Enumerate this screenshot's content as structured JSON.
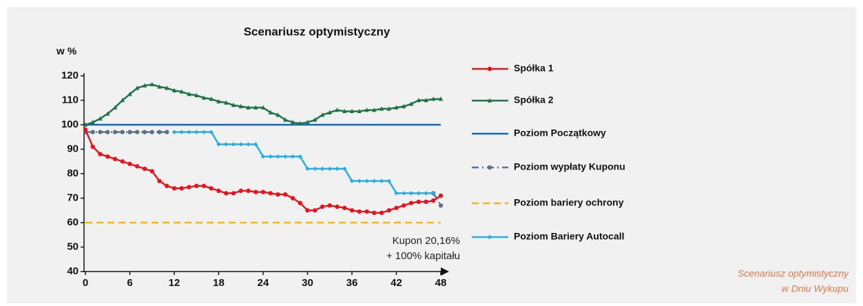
{
  "chart_data": {
    "type": "line",
    "title": "Scenariusz optymistyczny",
    "y_label": "w %",
    "annotation": [
      "Kupon 20,16%",
      "+ 100% kapitału"
    ],
    "caption": [
      "Scenariusz optymistyczny",
      "w Dniu Wykupu"
    ],
    "xlim": [
      0,
      48
    ],
    "xticks": [
      0,
      6,
      12,
      18,
      24,
      30,
      36,
      42,
      48
    ],
    "ylim": [
      40,
      120
    ],
    "yticks": [
      40,
      50,
      60,
      70,
      80,
      90,
      100,
      110,
      120
    ],
    "series": [
      {
        "name": "Spółka 1",
        "color": "#e3161e",
        "marker": "circle",
        "dash": "solid",
        "x": [
          0,
          1,
          2,
          3,
          4,
          5,
          6,
          7,
          8,
          9,
          10,
          11,
          12,
          13,
          14,
          15,
          16,
          17,
          18,
          19,
          20,
          21,
          22,
          23,
          24,
          25,
          26,
          27,
          28,
          29,
          30,
          31,
          32,
          33,
          34,
          35,
          36,
          37,
          38,
          39,
          40,
          41,
          42,
          43,
          44,
          45,
          46,
          47,
          48
        ],
        "values": [
          98,
          91,
          88,
          87,
          86,
          85,
          84,
          83,
          82,
          81,
          77,
          75,
          74,
          74,
          74.5,
          75,
          75,
          74,
          73,
          72,
          72,
          73,
          73,
          72.5,
          72.5,
          72,
          71.5,
          71.5,
          70,
          68,
          65,
          65,
          66.5,
          67,
          66.5,
          66,
          65,
          64.5,
          64.5,
          64,
          64,
          65,
          66,
          67,
          68,
          68.5,
          68.5,
          69,
          71
        ]
      },
      {
        "name": "Spółka 2",
        "color": "#1e7349",
        "marker": "triangle",
        "dash": "solid",
        "x": [
          0,
          1,
          2,
          3,
          4,
          5,
          6,
          7,
          8,
          9,
          10,
          11,
          12,
          13,
          14,
          15,
          16,
          17,
          18,
          19,
          20,
          21,
          22,
          23,
          24,
          25,
          26,
          27,
          28,
          29,
          30,
          31,
          32,
          33,
          34,
          35,
          36,
          37,
          38,
          39,
          40,
          41,
          42,
          43,
          44,
          45,
          46,
          47,
          48
        ],
        "values": [
          100,
          101,
          102.5,
          104.5,
          107,
          110,
          112.5,
          115,
          116,
          116.5,
          115.5,
          115,
          114,
          113.5,
          112.5,
          112,
          111,
          110.5,
          109.5,
          109,
          108,
          107.5,
          107,
          107,
          107,
          105,
          104,
          102,
          101,
          100.5,
          101,
          102,
          104,
          105,
          106,
          105.5,
          105.5,
          105.5,
          106,
          106,
          106.5,
          106.5,
          107,
          107.5,
          108.5,
          110,
          110,
          110.5,
          110.5
        ]
      },
      {
        "name": "Poziom Początkowy",
        "color": "#1565b8",
        "marker": "none",
        "dash": "solid",
        "x": [
          0,
          48
        ],
        "values": [
          100,
          100
        ]
      },
      {
        "name": "Poziom wypłaty Kuponu",
        "color": "#5c7387",
        "marker": "circle",
        "dash": "dashdot",
        "x": [
          0,
          1,
          2,
          3,
          4,
          5,
          6,
          7,
          8,
          9,
          10,
          11,
          12,
          47,
          48
        ],
        "values": [
          97,
          97,
          97,
          97,
          97,
          97,
          97,
          97,
          97,
          97,
          97,
          97,
          null,
          72,
          67
        ]
      },
      {
        "name": "Poziom bariery ochrony",
        "color": "#f2b51c",
        "marker": "none",
        "dash": "dashed",
        "x": [
          0,
          48
        ],
        "values": [
          60,
          60
        ]
      },
      {
        "name": "Poziom Bariery Autocall",
        "color": "#25aee3",
        "marker": "diamond",
        "dash": "solid",
        "x": [
          12,
          13,
          14,
          15,
          16,
          17,
          18,
          19,
          20,
          21,
          22,
          23,
          24,
          25,
          26,
          27,
          28,
          29,
          30,
          31,
          32,
          33,
          34,
          35,
          36,
          37,
          38,
          39,
          40,
          41,
          42,
          43,
          44,
          45,
          46,
          47
        ],
        "values": [
          97,
          97,
          97,
          97,
          97,
          97,
          92,
          92,
          92,
          92,
          92,
          92,
          87,
          87,
          87,
          87,
          87,
          87,
          82,
          82,
          82,
          82,
          82,
          82,
          77,
          77,
          77,
          77,
          77,
          77,
          72,
          72,
          72,
          72,
          72,
          72
        ]
      }
    ]
  }
}
